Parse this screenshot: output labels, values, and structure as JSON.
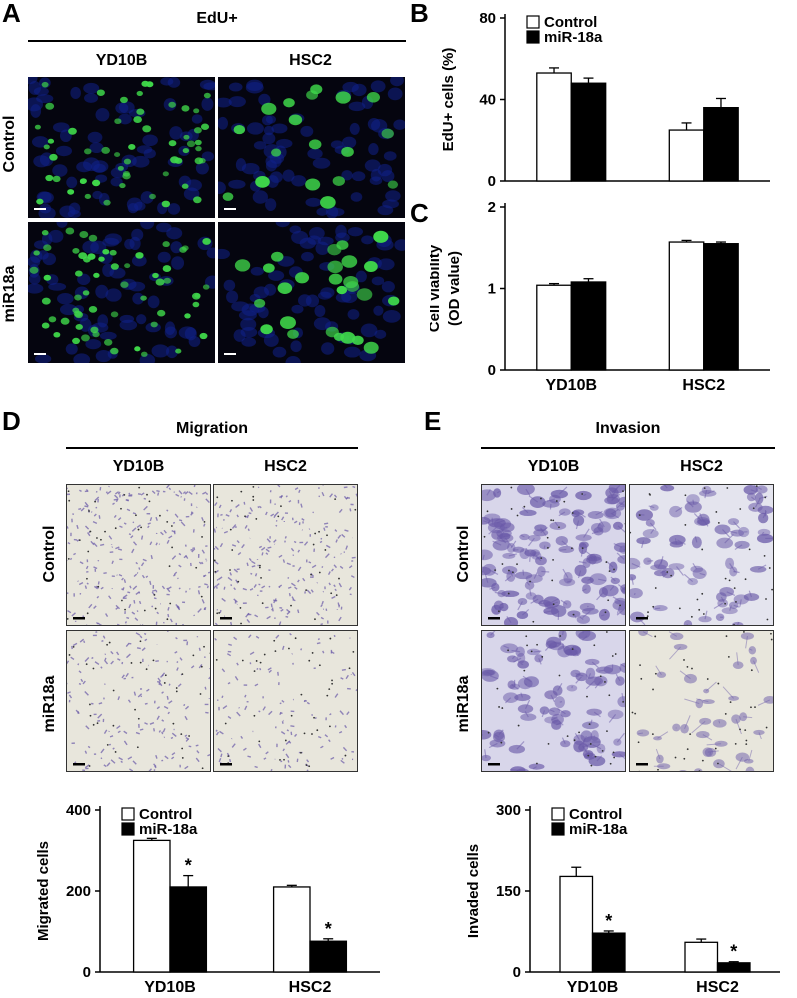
{
  "panels": {
    "A": {
      "letter": "A",
      "header": "EdU+",
      "columns": [
        "YD10B",
        "HSC2"
      ],
      "rows": [
        "Control",
        "miR18a"
      ]
    },
    "D": {
      "letter": "D",
      "header": "Migration",
      "columns": [
        "YD10B",
        "HSC2"
      ],
      "rows": [
        "Control",
        "miR18a"
      ]
    },
    "E": {
      "letter": "E",
      "header": "Invasion",
      "columns": [
        "YD10B",
        "HSC2"
      ],
      "rows": [
        "Control",
        "miR18a"
      ]
    }
  },
  "colors": {
    "control_fill": "#ffffff",
    "mir_fill": "#000000",
    "nuclei_green": "#3fd84a",
    "nuclei_blue": "#10208a",
    "stain_purple": "#6a5aa8"
  },
  "chart_data": [
    {
      "id": "B",
      "letter": "B",
      "type": "bar",
      "categories": [
        "YD10B",
        "HSC2"
      ],
      "series": [
        {
          "name": "Control",
          "values": [
            53,
            25
          ],
          "errors": [
            2.5,
            3.5
          ]
        },
        {
          "name": "miR-18a",
          "values": [
            48,
            36
          ],
          "errors": [
            2.5,
            4.5
          ]
        }
      ],
      "ylabel": "EdU+ cells (%)",
      "ylim": [
        0,
        80
      ],
      "yticks": [
        0,
        40,
        80
      ],
      "legend": "top-left",
      "show_categories": false,
      "significance": []
    },
    {
      "id": "C",
      "letter": "C",
      "type": "bar",
      "categories": [
        "YD10B",
        "HSC2"
      ],
      "series": [
        {
          "name": "Control",
          "values": [
            1.04,
            1.57
          ],
          "errors": [
            0.02,
            0.02
          ]
        },
        {
          "name": "miR-18a",
          "values": [
            1.08,
            1.55
          ],
          "errors": [
            0.04,
            0.02
          ]
        }
      ],
      "ylabel": "Cell viability (OD value)",
      "ylabel_lines": [
        "Cell viability",
        "(OD value)"
      ],
      "ylim": [
        0,
        2
      ],
      "yticks": [
        0,
        1,
        2
      ],
      "legend": "none",
      "show_categories": true,
      "significance": []
    },
    {
      "id": "D-chart",
      "type": "bar",
      "categories": [
        "YD10B",
        "HSC2"
      ],
      "series": [
        {
          "name": "Control",
          "values": [
            325,
            210
          ],
          "errors": [
            5,
            4
          ]
        },
        {
          "name": "miR-18a",
          "values": [
            210,
            76
          ],
          "errors": [
            28,
            6
          ]
        }
      ],
      "ylabel": "Migrated cells",
      "ylim": [
        0,
        400
      ],
      "yticks": [
        0,
        200,
        400
      ],
      "legend": "top-left",
      "show_categories": true,
      "significance": [
        "*",
        "*"
      ]
    },
    {
      "id": "E-chart",
      "type": "bar",
      "categories": [
        "YD10B",
        "HSC2"
      ],
      "series": [
        {
          "name": "Control",
          "values": [
            177,
            55
          ],
          "errors": [
            17,
            6
          ]
        },
        {
          "name": "miR-18a",
          "values": [
            72,
            17
          ],
          "errors": [
            4,
            2
          ]
        }
      ],
      "ylabel": "Invaded cells",
      "ylim": [
        0,
        300
      ],
      "yticks": [
        0,
        150,
        300
      ],
      "legend": "top-left",
      "show_categories": true,
      "significance": [
        "*",
        "*"
      ]
    }
  ]
}
